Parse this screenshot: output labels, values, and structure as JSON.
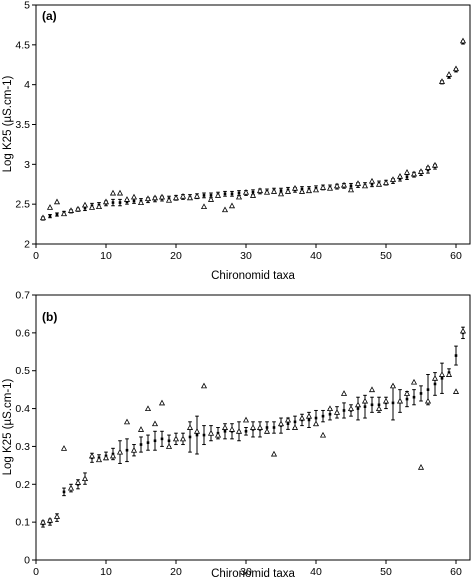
{
  "chart_data": [
    {
      "type": "scatter",
      "panel_label": "(a)",
      "xlabel": "Chironomid taxa",
      "ylabel": "Log K25 (µS.cm-1)",
      "xlim": [
        0,
        62
      ],
      "ylim": [
        2,
        5
      ],
      "xticks": [
        "0",
        "10",
        "20",
        "30",
        "40",
        "50",
        "60"
      ],
      "yticks": [
        "2",
        "2.5",
        "3",
        "3.5",
        "4",
        "4.5",
        "5"
      ],
      "grid": false,
      "series": [
        {
          "kind": "mean_with_error",
          "x": [
            1,
            2,
            3,
            4,
            5,
            6,
            7,
            8,
            9,
            10,
            11,
            12,
            13,
            14,
            15,
            16,
            17,
            18,
            19,
            20,
            21,
            22,
            23,
            24,
            25,
            26,
            27,
            28,
            29,
            30,
            31,
            32,
            33,
            34,
            35,
            36,
            37,
            38,
            39,
            40,
            41,
            42,
            43,
            44,
            45,
            46,
            47,
            48,
            49,
            50,
            51,
            52,
            53,
            54,
            55,
            56,
            57,
            58,
            59,
            60,
            61
          ],
          "mean": [
            2.32,
            2.35,
            2.37,
            2.39,
            2.41,
            2.43,
            2.45,
            2.48,
            2.49,
            2.51,
            2.52,
            2.52,
            2.53,
            2.54,
            2.54,
            2.55,
            2.56,
            2.57,
            2.57,
            2.58,
            2.59,
            2.59,
            2.6,
            2.61,
            2.61,
            2.62,
            2.63,
            2.63,
            2.64,
            2.64,
            2.65,
            2.66,
            2.66,
            2.67,
            2.67,
            2.68,
            2.68,
            2.69,
            2.69,
            2.7,
            2.71,
            2.71,
            2.72,
            2.73,
            2.73,
            2.74,
            2.74,
            2.75,
            2.76,
            2.77,
            2.79,
            2.82,
            2.84,
            2.87,
            2.89,
            2.93,
            2.97,
            4.03,
            4.1,
            4.18,
            4.53
          ],
          "err": [
            0.02,
            0.02,
            0.02,
            0.02,
            0.02,
            0.02,
            0.03,
            0.03,
            0.03,
            0.03,
            0.04,
            0.04,
            0.03,
            0.03,
            0.03,
            0.03,
            0.03,
            0.03,
            0.03,
            0.03,
            0.03,
            0.03,
            0.03,
            0.03,
            0.03,
            0.03,
            0.03,
            0.03,
            0.03,
            0.03,
            0.03,
            0.03,
            0.03,
            0.03,
            0.03,
            0.03,
            0.03,
            0.03,
            0.03,
            0.03,
            0.03,
            0.03,
            0.03,
            0.03,
            0.03,
            0.03,
            0.03,
            0.03,
            0.03,
            0.03,
            0.03,
            0.03,
            0.03,
            0.03,
            0.03,
            0.04,
            0.03,
            0.02,
            0.02,
            0.02,
            0.02
          ]
        },
        {
          "kind": "optimum_triangle",
          "x": [
            1,
            2,
            3,
            4,
            5,
            6,
            7,
            8,
            9,
            10,
            11,
            12,
            13,
            14,
            15,
            16,
            17,
            18,
            19,
            20,
            21,
            22,
            23,
            24,
            25,
            26,
            27,
            28,
            29,
            30,
            31,
            32,
            33,
            34,
            35,
            36,
            37,
            38,
            39,
            40,
            41,
            42,
            43,
            44,
            45,
            46,
            47,
            48,
            49,
            50,
            51,
            52,
            53,
            54,
            55,
            56,
            57,
            58,
            59,
            60,
            61
          ],
          "y": [
            2.33,
            2.46,
            2.53,
            2.38,
            2.42,
            2.44,
            2.49,
            2.46,
            2.47,
            2.53,
            2.64,
            2.64,
            2.56,
            2.59,
            2.52,
            2.57,
            2.58,
            2.59,
            2.55,
            2.58,
            2.6,
            2.58,
            2.6,
            2.47,
            2.56,
            2.61,
            2.43,
            2.48,
            2.59,
            2.65,
            2.61,
            2.67,
            2.65,
            2.66,
            2.63,
            2.66,
            2.7,
            2.66,
            2.67,
            2.68,
            2.71,
            2.7,
            2.73,
            2.74,
            2.68,
            2.76,
            2.73,
            2.79,
            2.75,
            2.77,
            2.81,
            2.85,
            2.9,
            2.88,
            2.91,
            2.96,
            2.99,
            4.04,
            4.13,
            4.2,
            4.55
          ]
        }
      ]
    },
    {
      "type": "scatter",
      "panel_label": "(b)",
      "xlabel": "Chironomid taxa",
      "ylabel": "Log K25 (µS.cm-1)",
      "xlim": [
        0,
        62
      ],
      "ylim": [
        0,
        0.7
      ],
      "xticks": [
        "0",
        "10",
        "20",
        "30",
        "40",
        "50",
        "60"
      ],
      "yticks": [
        "0",
        "0.1",
        "0.2",
        "0.3",
        "0.4",
        "0.5",
        "0.6",
        "0.7"
      ],
      "grid": false,
      "series": [
        {
          "kind": "mean_with_error",
          "x": [
            1,
            2,
            3,
            4,
            5,
            6,
            7,
            8,
            9,
            10,
            11,
            12,
            13,
            14,
            15,
            16,
            17,
            18,
            19,
            20,
            21,
            22,
            23,
            24,
            25,
            26,
            27,
            28,
            29,
            30,
            31,
            32,
            33,
            34,
            35,
            36,
            37,
            38,
            39,
            40,
            41,
            42,
            43,
            44,
            45,
            46,
            47,
            48,
            49,
            50,
            51,
            52,
            53,
            54,
            55,
            56,
            57,
            58,
            59,
            60,
            61
          ],
          "mean": [
            0.095,
            0.1,
            0.112,
            0.18,
            0.19,
            0.2,
            0.215,
            0.27,
            0.27,
            0.275,
            0.28,
            0.285,
            0.29,
            0.29,
            0.305,
            0.31,
            0.315,
            0.32,
            0.315,
            0.32,
            0.32,
            0.325,
            0.33,
            0.33,
            0.335,
            0.335,
            0.34,
            0.34,
            0.34,
            0.34,
            0.345,
            0.345,
            0.35,
            0.35,
            0.355,
            0.36,
            0.365,
            0.37,
            0.37,
            0.375,
            0.38,
            0.385,
            0.39,
            0.395,
            0.395,
            0.4,
            0.405,
            0.41,
            0.41,
            0.415,
            0.415,
            0.42,
            0.425,
            0.43,
            0.44,
            0.45,
            0.465,
            0.48,
            0.495,
            0.54,
            0.6
          ],
          "err": [
            0.008,
            0.008,
            0.01,
            0.01,
            0.01,
            0.012,
            0.015,
            0.012,
            0.008,
            0.01,
            0.015,
            0.03,
            0.03,
            0.015,
            0.02,
            0.02,
            0.025,
            0.02,
            0.015,
            0.015,
            0.015,
            0.04,
            0.05,
            0.025,
            0.02,
            0.015,
            0.02,
            0.02,
            0.025,
            0.01,
            0.02,
            0.02,
            0.015,
            0.015,
            0.02,
            0.015,
            0.015,
            0.015,
            0.02,
            0.02,
            0.015,
            0.015,
            0.015,
            0.02,
            0.015,
            0.03,
            0.03,
            0.02,
            0.02,
            0.015,
            0.045,
            0.03,
            0.02,
            0.02,
            0.02,
            0.04,
            0.03,
            0.04,
            0.01,
            0.025,
            0.015
          ]
        },
        {
          "kind": "optimum_triangle",
          "x": [
            1,
            2,
            3,
            4,
            5,
            6,
            7,
            8,
            9,
            10,
            11,
            12,
            13,
            14,
            15,
            16,
            17,
            18,
            19,
            20,
            21,
            22,
            23,
            24,
            25,
            26,
            27,
            28,
            29,
            30,
            31,
            32,
            33,
            34,
            35,
            36,
            37,
            38,
            39,
            40,
            41,
            42,
            43,
            44,
            45,
            46,
            47,
            48,
            49,
            50,
            51,
            52,
            53,
            54,
            55,
            56,
            57,
            58,
            59,
            60,
            61
          ],
          "y": [
            0.1,
            0.105,
            0.115,
            0.295,
            0.19,
            0.205,
            0.215,
            0.275,
            0.265,
            0.27,
            0.275,
            0.285,
            0.365,
            0.29,
            0.345,
            0.4,
            0.36,
            0.415,
            0.3,
            0.32,
            0.32,
            0.35,
            0.34,
            0.46,
            0.335,
            0.33,
            0.35,
            0.345,
            0.34,
            0.37,
            0.35,
            0.35,
            0.34,
            0.28,
            0.36,
            0.37,
            0.35,
            0.375,
            0.38,
            0.36,
            0.33,
            0.4,
            0.39,
            0.44,
            0.4,
            0.41,
            0.42,
            0.45,
            0.4,
            0.42,
            0.46,
            0.42,
            0.44,
            0.47,
            0.245,
            0.42,
            0.48,
            0.49,
            0.49,
            0.445,
            0.605
          ]
        }
      ]
    }
  ]
}
